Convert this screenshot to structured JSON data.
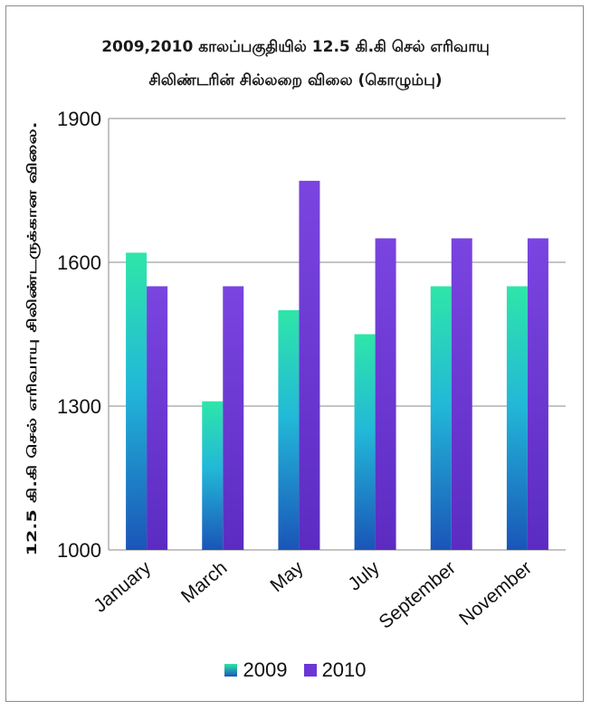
{
  "chart_data": {
    "type": "bar",
    "title_lines": [
      "2009,2010 காலப்பகுதியில் 12.5 கி.கி செல் எரிவாயு",
      "சிலிண்டரின் சில்லறை விலை (கொழும்பு)"
    ],
    "ylabel": "12.5 கி.கி செல் எரிவாயு சிலிண்டருக்கான விலை.",
    "xlabel": "",
    "categories": [
      "January",
      "March",
      "May",
      "July",
      "September",
      "November"
    ],
    "series": [
      {
        "name": "2009",
        "values": [
          1620,
          1310,
          1500,
          1450,
          1550,
          1550
        ],
        "color_top": "#2ee6a8",
        "color_bottom": "#1a55b8"
      },
      {
        "name": "2010",
        "values": [
          1550,
          1550,
          1770,
          1650,
          1650,
          1650
        ],
        "color_top": "#7b43df",
        "color_bottom": "#5f28c4"
      }
    ],
    "ylim": [
      1000,
      1900
    ],
    "yticks": [
      1000,
      1300,
      1600,
      1900
    ],
    "grid": true,
    "legend_position": "bottom"
  }
}
